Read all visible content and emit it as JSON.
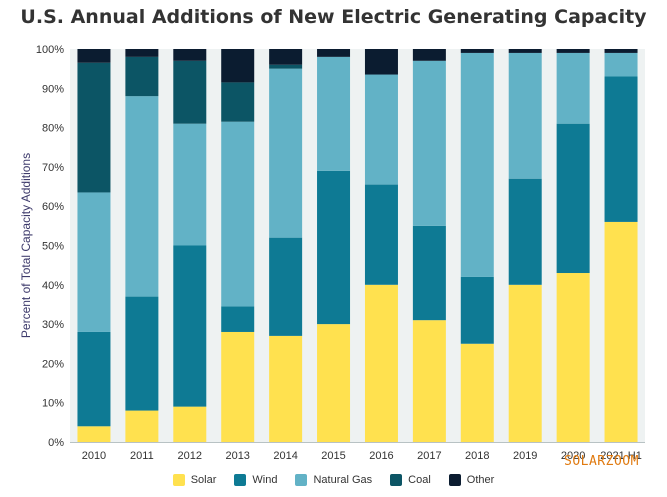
{
  "chart_data": {
    "type": "bar",
    "stacked": true,
    "title": "U.S. Annual Additions of New Electric Generating Capacity",
    "ylabel": "Percent of Total Capacity Additions",
    "xlabel": "",
    "ylim": [
      0,
      100
    ],
    "yticks": [
      "0%",
      "10%",
      "20%",
      "30%",
      "40%",
      "50%",
      "60%",
      "70%",
      "80%",
      "90%",
      "100%"
    ],
    "grid": false,
    "legend_position": "bottom",
    "categories": [
      "2010",
      "2011",
      "2012",
      "2013",
      "2014",
      "2015",
      "2016",
      "2017",
      "2018",
      "2019",
      "2020",
      "2021 H1"
    ],
    "series": [
      {
        "name": "Solar",
        "color": "#ffe14f",
        "values": [
          4,
          8,
          9,
          28,
          27,
          30,
          40,
          31,
          25,
          40,
          43,
          56
        ]
      },
      {
        "name": "Wind",
        "color": "#0e7a94",
        "values": [
          24,
          29,
          41,
          6.5,
          25,
          39,
          25.5,
          24,
          17,
          27,
          38,
          37
        ]
      },
      {
        "name": "Natural Gas",
        "color": "#62b2c6",
        "values": [
          35.5,
          51,
          31,
          47,
          43,
          29,
          28,
          42,
          57,
          32,
          18,
          6
        ]
      },
      {
        "name": "Coal",
        "color": "#0c5565",
        "values": [
          33,
          10,
          16,
          10,
          1,
          0,
          0,
          0,
          0,
          0,
          0,
          0
        ]
      },
      {
        "name": "Other",
        "color": "#0b1c30",
        "values": [
          3.5,
          2,
          3,
          8.5,
          4,
          2,
          6.5,
          3,
          1,
          1,
          1,
          1
        ]
      }
    ]
  },
  "watermark": "SOLARZOOM"
}
